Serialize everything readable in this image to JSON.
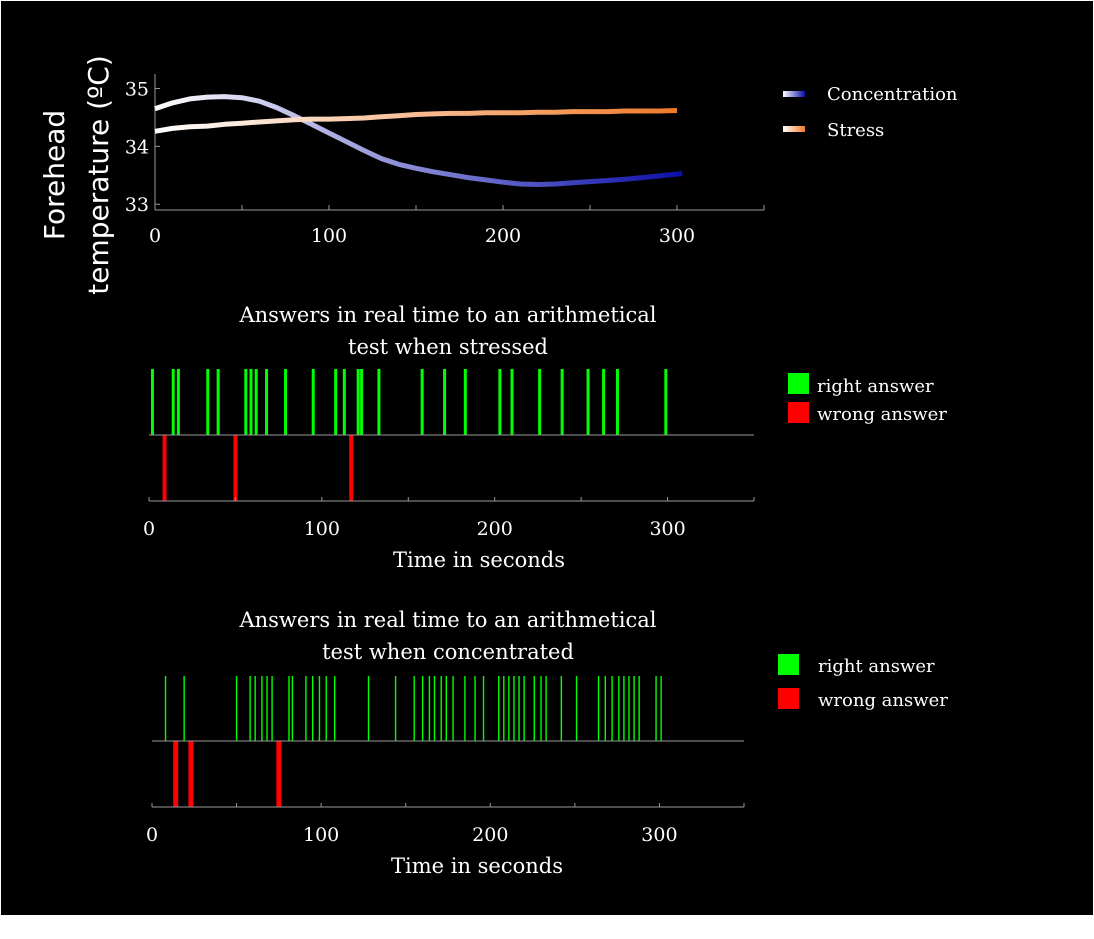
{
  "chart_data": [
    {
      "type": "line",
      "title": "",
      "xlabel": "",
      "ylabel_lines": [
        "Forehead",
        "temperature (ºC)"
      ],
      "xlim": [
        0,
        350
      ],
      "ylim": [
        32.9,
        35.25
      ],
      "xticks": [
        0,
        100,
        200,
        300
      ],
      "yticks": [
        33,
        34,
        35
      ],
      "grid": false,
      "legend_position": "right",
      "series": [
        {
          "name": "Concentration",
          "color_start": "#ffffff",
          "color_end": "#0b0fa8",
          "x": [
            0,
            10,
            20,
            30,
            40,
            50,
            60,
            70,
            80,
            90,
            100,
            110,
            120,
            130,
            140,
            150,
            160,
            170,
            180,
            190,
            200,
            210,
            220,
            230,
            240,
            250,
            260,
            270,
            280,
            290,
            303
          ],
          "y": [
            34.65,
            34.75,
            34.82,
            34.85,
            34.86,
            34.84,
            34.78,
            34.67,
            34.53,
            34.38,
            34.23,
            34.08,
            33.93,
            33.79,
            33.69,
            33.62,
            33.56,
            33.51,
            33.46,
            33.42,
            33.38,
            33.35,
            33.34,
            33.35,
            33.37,
            33.39,
            33.41,
            33.43,
            33.46,
            33.49,
            33.53
          ]
        },
        {
          "name": "Stress",
          "color_start": "#ffffff",
          "color_end": "#f07a28",
          "x": [
            0,
            10,
            20,
            30,
            40,
            50,
            60,
            70,
            80,
            90,
            100,
            110,
            120,
            130,
            140,
            150,
            160,
            170,
            180,
            190,
            200,
            210,
            220,
            230,
            240,
            250,
            260,
            270,
            280,
            290,
            300
          ],
          "y": [
            34.26,
            34.31,
            34.34,
            34.35,
            34.38,
            34.4,
            34.42,
            34.44,
            34.46,
            34.47,
            34.47,
            34.48,
            34.49,
            34.51,
            34.53,
            34.55,
            34.56,
            34.57,
            34.57,
            34.58,
            34.58,
            34.58,
            34.59,
            34.59,
            34.6,
            34.6,
            34.6,
            34.61,
            34.61,
            34.61,
            34.62
          ]
        }
      ]
    },
    {
      "type": "event",
      "title_lines": [
        "Answers in real time to an arithmetical",
        "test when stressed"
      ],
      "xlabel": "Time in seconds",
      "xlim": [
        0,
        350
      ],
      "xticks": [
        0,
        100,
        200,
        300
      ],
      "legend_position": "right",
      "series": [
        {
          "name": "right answer",
          "color": "#00ff00",
          "times": [
            2,
            14,
            17,
            34,
            40,
            56,
            59,
            62,
            68,
            79,
            95,
            108,
            113,
            121,
            123,
            133,
            158,
            171,
            183,
            203,
            210,
            226,
            239,
            254,
            263,
            271,
            299
          ]
        },
        {
          "name": "wrong answer",
          "color": "#ff0000",
          "times": [
            9,
            50,
            117
          ]
        }
      ]
    },
    {
      "type": "event",
      "title_lines": [
        "Answers in real time to an arithmetical",
        "test when concentrated"
      ],
      "xlabel": "Time in seconds",
      "xlim": [
        0,
        350
      ],
      "xticks": [
        0,
        100,
        200,
        300
      ],
      "legend_position": "right",
      "series": [
        {
          "name": "right answer",
          "color": "#00ff00",
          "times": [
            8,
            19,
            50,
            58,
            61,
            65,
            68,
            71,
            81,
            83,
            91,
            95,
            99,
            103,
            108,
            128,
            144,
            155,
            160,
            164,
            167,
            171,
            174,
            178,
            185,
            191,
            196,
            205,
            208,
            211,
            214,
            217,
            220,
            226,
            230,
            233,
            242,
            251,
            264,
            268,
            272,
            276,
            279,
            282,
            285,
            288,
            298,
            301
          ]
        },
        {
          "name": "wrong answer",
          "color": "#ff0000",
          "times": [
            14,
            23,
            75
          ]
        }
      ]
    }
  ]
}
